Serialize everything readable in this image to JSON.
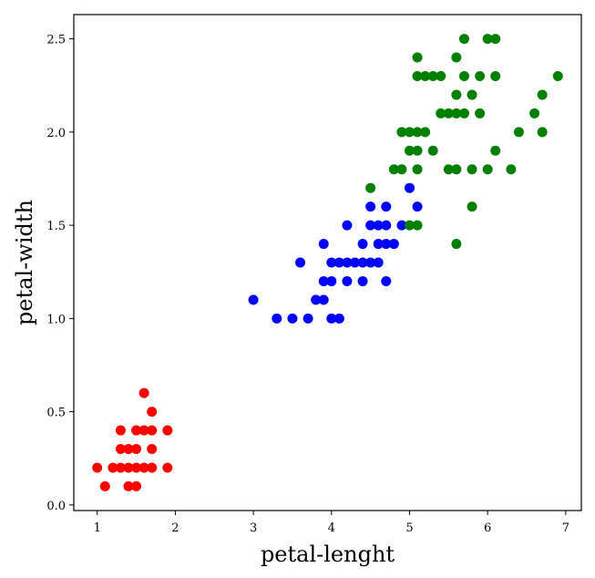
{
  "chart_data": {
    "type": "scatter",
    "title": "",
    "xlabel": "petal-lenght",
    "ylabel": "petal-width",
    "xlim": [
      0.7,
      7.2
    ],
    "ylim": [
      -0.03,
      2.63
    ],
    "xticks": [
      1,
      2,
      3,
      4,
      5,
      6,
      7
    ],
    "yticks": [
      0.0,
      0.5,
      1.0,
      1.5,
      2.0,
      2.5
    ],
    "xtick_labels": [
      "1",
      "2",
      "3",
      "4",
      "5",
      "6",
      "7"
    ],
    "ytick_labels": [
      "0.0",
      "0.5",
      "1.0",
      "1.5",
      "2.0",
      "2.5"
    ],
    "grid": false,
    "legend": "none",
    "series": [
      {
        "color": "#ff0000",
        "points": [
          [
            1.0,
            0.2
          ],
          [
            1.1,
            0.1
          ],
          [
            1.2,
            0.2
          ],
          [
            1.3,
            0.2
          ],
          [
            1.3,
            0.3
          ],
          [
            1.3,
            0.4
          ],
          [
            1.4,
            0.1
          ],
          [
            1.4,
            0.2
          ],
          [
            1.4,
            0.3
          ],
          [
            1.5,
            0.1
          ],
          [
            1.5,
            0.2
          ],
          [
            1.5,
            0.3
          ],
          [
            1.5,
            0.4
          ],
          [
            1.6,
            0.2
          ],
          [
            1.6,
            0.4
          ],
          [
            1.6,
            0.6
          ],
          [
            1.7,
            0.2
          ],
          [
            1.7,
            0.3
          ],
          [
            1.7,
            0.4
          ],
          [
            1.7,
            0.5
          ],
          [
            1.9,
            0.2
          ],
          [
            1.9,
            0.4
          ]
        ]
      },
      {
        "color": "#0000ff",
        "points": [
          [
            3.0,
            1.1
          ],
          [
            3.3,
            1.0
          ],
          [
            3.5,
            1.0
          ],
          [
            3.6,
            1.3
          ],
          [
            3.7,
            1.0
          ],
          [
            3.8,
            1.1
          ],
          [
            3.9,
            1.1
          ],
          [
            3.9,
            1.2
          ],
          [
            3.9,
            1.4
          ],
          [
            4.0,
            1.0
          ],
          [
            4.0,
            1.2
          ],
          [
            4.0,
            1.3
          ],
          [
            4.1,
            1.0
          ],
          [
            4.1,
            1.3
          ],
          [
            4.2,
            1.2
          ],
          [
            4.2,
            1.3
          ],
          [
            4.2,
            1.5
          ],
          [
            4.3,
            1.3
          ],
          [
            4.4,
            1.2
          ],
          [
            4.4,
            1.3
          ],
          [
            4.4,
            1.4
          ],
          [
            4.5,
            1.3
          ],
          [
            4.5,
            1.5
          ],
          [
            4.5,
            1.6
          ],
          [
            4.6,
            1.3
          ],
          [
            4.6,
            1.4
          ],
          [
            4.6,
            1.5
          ],
          [
            4.7,
            1.2
          ],
          [
            4.7,
            1.4
          ],
          [
            4.7,
            1.5
          ],
          [
            4.7,
            1.6
          ],
          [
            4.8,
            1.4
          ],
          [
            4.9,
            1.5
          ],
          [
            5.0,
            1.7
          ],
          [
            5.1,
            1.6
          ]
        ]
      },
      {
        "color": "#008000",
        "points": [
          [
            4.5,
            1.7
          ],
          [
            4.8,
            1.8
          ],
          [
            4.9,
            1.8
          ],
          [
            4.9,
            2.0
          ],
          [
            5.0,
            1.5
          ],
          [
            5.0,
            1.9
          ],
          [
            5.0,
            2.0
          ],
          [
            5.1,
            1.5
          ],
          [
            5.1,
            1.8
          ],
          [
            5.1,
            1.9
          ],
          [
            5.1,
            2.0
          ],
          [
            5.1,
            2.3
          ],
          [
            5.1,
            2.4
          ],
          [
            5.2,
            2.0
          ],
          [
            5.2,
            2.3
          ],
          [
            5.3,
            1.9
          ],
          [
            5.3,
            2.3
          ],
          [
            5.4,
            2.1
          ],
          [
            5.4,
            2.3
          ],
          [
            5.5,
            1.8
          ],
          [
            5.5,
            2.1
          ],
          [
            5.6,
            1.4
          ],
          [
            5.6,
            1.8
          ],
          [
            5.6,
            2.1
          ],
          [
            5.6,
            2.2
          ],
          [
            5.6,
            2.4
          ],
          [
            5.7,
            2.1
          ],
          [
            5.7,
            2.3
          ],
          [
            5.7,
            2.5
          ],
          [
            5.8,
            1.6
          ],
          [
            5.8,
            1.8
          ],
          [
            5.8,
            2.2
          ],
          [
            5.9,
            2.1
          ],
          [
            5.9,
            2.3
          ],
          [
            6.0,
            1.8
          ],
          [
            6.0,
            2.5
          ],
          [
            6.1,
            1.9
          ],
          [
            6.1,
            2.3
          ],
          [
            6.1,
            2.5
          ],
          [
            6.3,
            1.8
          ],
          [
            6.4,
            2.0
          ],
          [
            6.6,
            2.1
          ],
          [
            6.7,
            2.0
          ],
          [
            6.7,
            2.2
          ],
          [
            6.9,
            2.3
          ]
        ]
      }
    ]
  }
}
